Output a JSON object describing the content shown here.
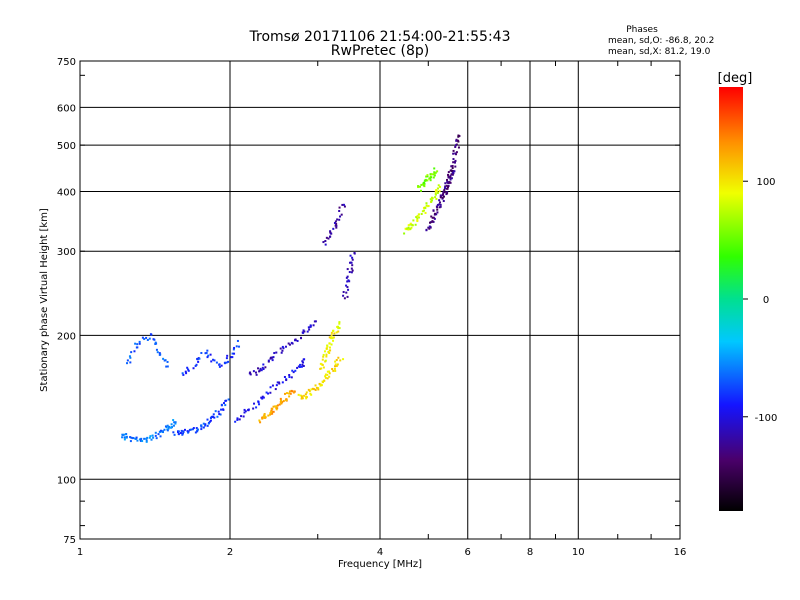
{
  "chart_data": {
    "type": "scatter",
    "title": "Tromsø 20171106 21:54:00-21:55:43",
    "subtitle": "RwPretec (8p)",
    "xlabel": "Frequency [MHz]",
    "ylabel": "Stationary phase Virtual Height [km]",
    "x_scale": "log",
    "y_scale": "log",
    "xlim": [
      1,
      16
    ],
    "ylim": [
      75,
      750
    ],
    "x_ticks": [
      "1",
      "2",
      "4",
      "6",
      "8",
      "10",
      "16"
    ],
    "y_ticks": [
      "75",
      "100",
      "200",
      "300",
      "400",
      "500",
      "600",
      "750"
    ],
    "grid": true,
    "stats": {
      "heading": "Phases",
      "line_o": "mean, sd,O: -86.8, 20.2",
      "line_x": "mean, sd,X:  81.2, 19.0"
    },
    "colorbar": {
      "label": "[deg]",
      "range": [
        -180,
        180
      ],
      "ticks": [
        "100",
        "0",
        "-100"
      ],
      "palette": "rainbow"
    },
    "series": [
      {
        "traces": [
          {
            "f": [
              1.22,
              1.25,
              1.3,
              1.36,
              1.42,
              1.48,
              1.52,
              1.55
            ],
            "h": [
              124,
              122,
              121,
              121,
              123,
              126,
              129,
              133
            ],
            "c": -60
          },
          {
            "f": [
              1.55,
              1.6,
              1.67,
              1.74,
              1.8,
              1.86,
              1.92,
              2.0
            ],
            "h": [
              125,
              125,
              126,
              128,
              131,
              135,
              140,
              147
            ],
            "c": -75
          },
          {
            "f": [
              2.05,
              2.15,
              2.3,
              2.45,
              2.6,
              2.75,
              2.85
            ],
            "h": [
              132,
              138,
              146,
              155,
              163,
              172,
              178
            ],
            "c": -95
          },
          {
            "f": [
              2.2,
              2.3,
              2.4,
              2.55,
              2.7,
              2.85,
              3.0
            ],
            "h": [
              165,
              170,
              178,
              186,
              195,
              205,
              215
            ],
            "c": -110
          },
          {
            "f": [
              2.3,
              2.35,
              2.42,
              2.48,
              2.55,
              2.62,
              2.7
            ],
            "h": [
              133,
              135,
              138,
              142,
              146,
              150,
              154
            ],
            "c": 125
          },
          {
            "f": [
              2.75,
              2.85,
              2.95,
              3.05,
              3.15,
              3.25,
              3.35
            ],
            "h": [
              148,
              150,
              154,
              159,
              165,
              172,
              180
            ],
            "c": 105
          },
          {
            "f": [
              3.05,
              3.1,
              3.15,
              3.2,
              3.25,
              3.3
            ],
            "h": [
              170,
              180,
              188,
              195,
              203,
              212
            ],
            "c": 95
          },
          {
            "f": [
              4.5,
              4.62,
              4.75,
              4.9,
              5.05,
              5.2,
              5.3
            ],
            "h": [
              330,
              338,
              350,
              365,
              380,
              398,
              410
            ],
            "c": 80
          },
          {
            "f": [
              4.8,
              4.9,
              5.0,
              5.1,
              5.2
            ],
            "h": [
              405,
              415,
              425,
              435,
              445
            ],
            "c": 55
          },
          {
            "f": [
              5.0,
              5.08,
              5.16,
              5.25,
              5.35,
              5.45,
              5.55,
              5.65
            ],
            "h": [
              330,
              345,
              360,
              375,
              390,
              410,
              430,
              450
            ],
            "c": -130
          },
          {
            "f": [
              5.4,
              5.48,
              5.56,
              5.64,
              5.72,
              5.8
            ],
            "h": [
              390,
              415,
              440,
              470,
              500,
              530
            ],
            "c": -135
          },
          {
            "f": [
              1.25,
              1.3,
              1.38,
              1.45,
              1.5
            ],
            "h": [
              175,
              190,
              200,
              185,
              170
            ],
            "c": -70
          },
          {
            "f": [
              1.6,
              1.7,
              1.8,
              1.9,
              2.0,
              2.1
            ],
            "h": [
              165,
              175,
              185,
              172,
              180,
              195
            ],
            "c": -80
          },
          {
            "f": [
              3.4,
              3.45,
              3.5,
              3.55
            ],
            "h": [
              240,
              260,
              280,
              300
            ],
            "c": -115
          },
          {
            "f": [
              3.1,
              3.2,
              3.3,
              3.4
            ],
            "h": [
              310,
              330,
              350,
              380
            ],
            "c": -120
          }
        ]
      }
    ]
  }
}
